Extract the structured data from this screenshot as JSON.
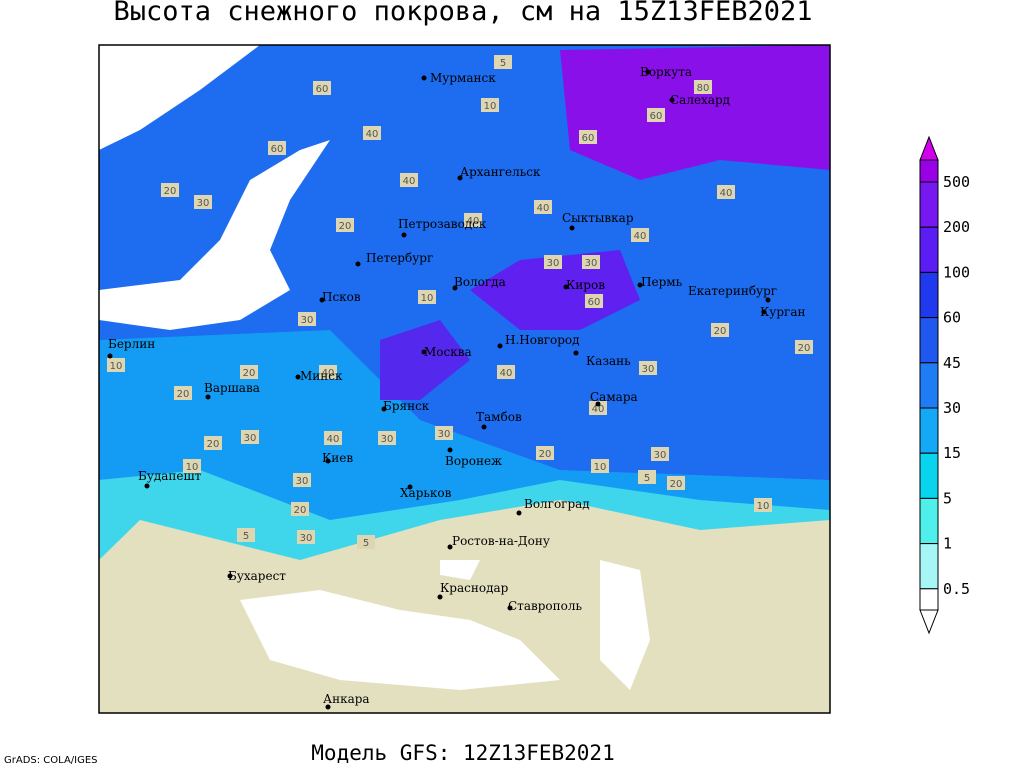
{
  "title": "Высота снежного покрова, см на 15Z13FEB2021",
  "footer": {
    "model": "Модель GFS: 12Z13FEB2021",
    "credit": "GrADS: COLA/IGES"
  },
  "cities": [
    "Мурманск",
    "Воркута",
    "Салехард",
    "Архангельск",
    "Петрозаводск",
    "Сыктывкар",
    "Петербург",
    "Вологда",
    "Киров",
    "Пермь",
    "Екатеринбург",
    "Курган",
    "Псков",
    "Берлин",
    "Москва",
    "Н.Новгород",
    "Казань",
    "Минск",
    "Варшава",
    "Брянск",
    "Тамбов",
    "Самара",
    "Киев",
    "Воронеж",
    "Будапешт",
    "Харьков",
    "Волгоград",
    "Ростов-на-Дону",
    "Бухарест",
    "Краснодар",
    "Ставрополь",
    "Анкара"
  ],
  "contour_labels": [
    60,
    5,
    10,
    80,
    60,
    60,
    40,
    20,
    30,
    60,
    40,
    20,
    40,
    40,
    40,
    40,
    30,
    30,
    60,
    40,
    20,
    30,
    10,
    20,
    40,
    30,
    10,
    30,
    20,
    30,
    40,
    30,
    40,
    30,
    20,
    20,
    10,
    5,
    20,
    30,
    10,
    30,
    5,
    5,
    10,
    20,
    20
  ],
  "legend": {
    "levels": [
      500,
      200,
      100,
      60,
      45,
      30,
      15,
      5,
      1,
      0.5
    ],
    "colors": [
      "#d200ee",
      "#9a00e6",
      "#7818f0",
      "#5a1ef5",
      "#2038ee",
      "#1e58ee",
      "#1e7cf4",
      "#14a8f6",
      "#08d4ee",
      "#4ff0ec",
      "#a6f6f6",
      "#ffffff"
    ]
  }
}
